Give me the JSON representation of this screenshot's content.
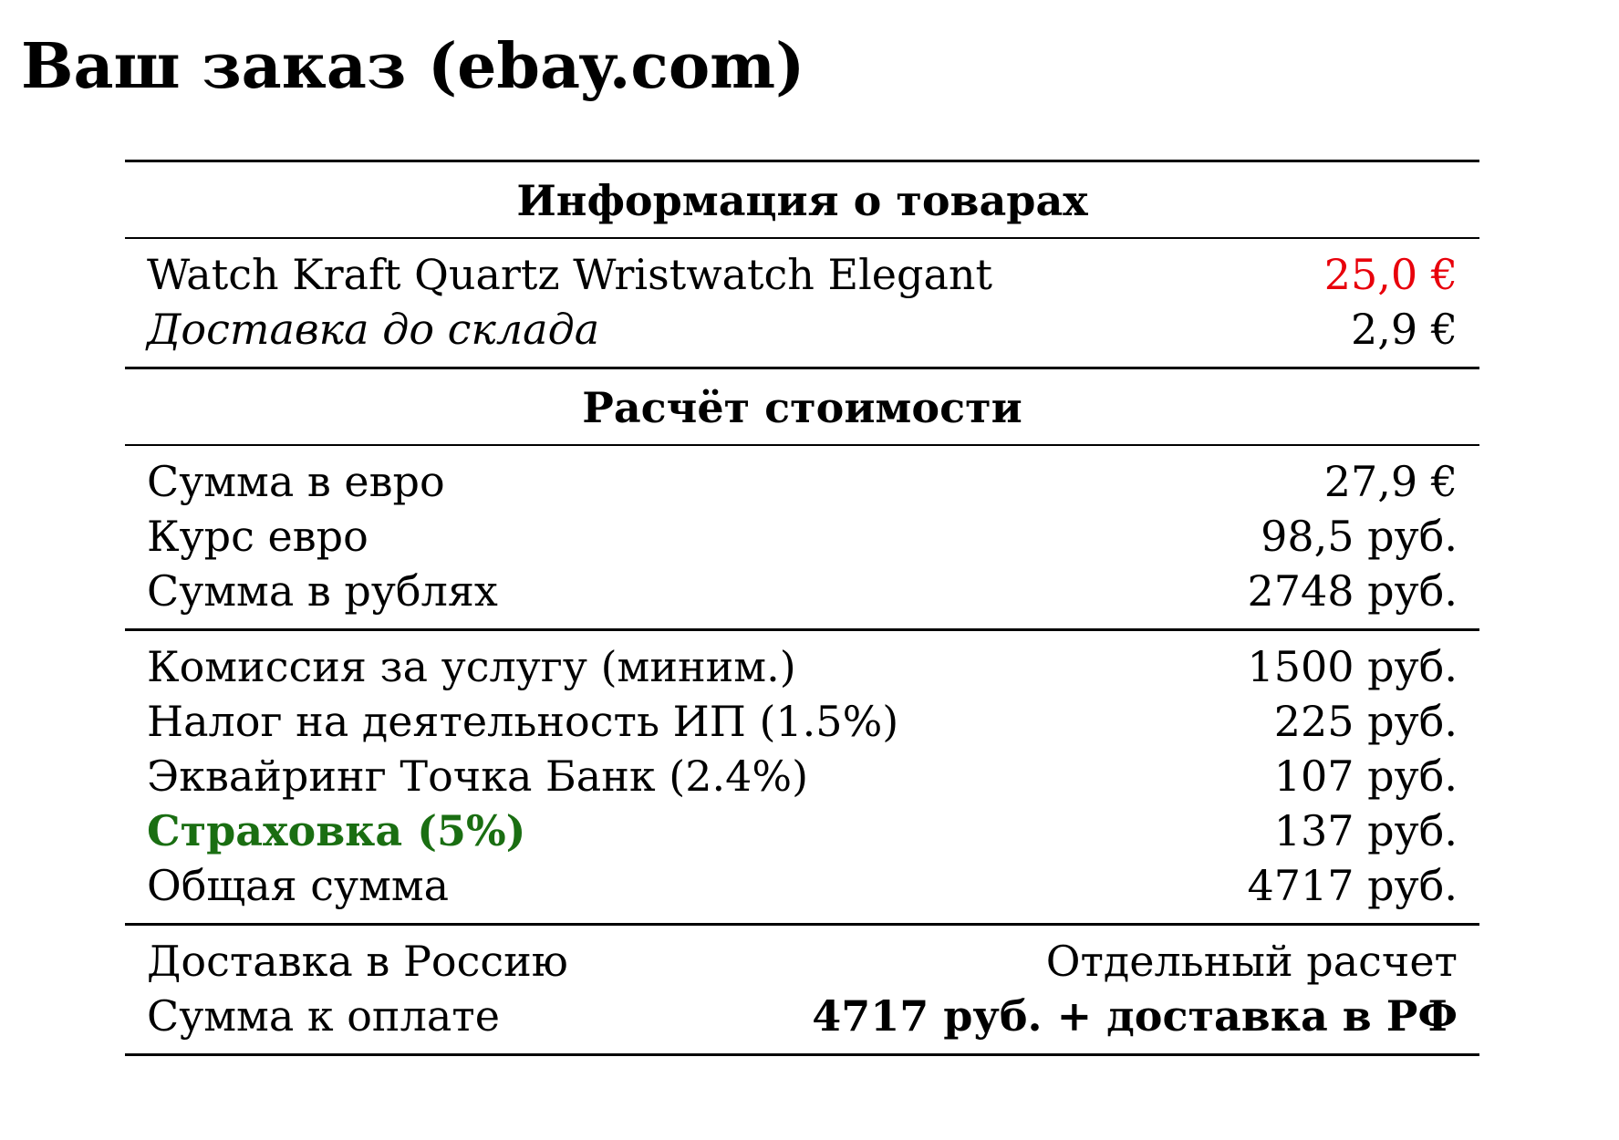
{
  "title": "Ваш заказ (ebay.com)",
  "colors": {
    "price_highlight": "#e8000b",
    "insurance_label": "#1a6e12",
    "text": "#000000"
  },
  "goods_section": {
    "header": "Информация о товарах",
    "rows": [
      {
        "label": "Watch Kraft Quartz Wristwatch Elegant",
        "value": "25,0 €"
      },
      {
        "label": "Доставка до склада",
        "value": "2,9 €"
      }
    ]
  },
  "cost_section": {
    "header": "Расчёт стоимости",
    "conversion_rows": [
      {
        "label": "Сумма в евро",
        "value": "27,9 €"
      },
      {
        "label": "Курс евро",
        "value": "98,5 руб."
      },
      {
        "label": "Сумма в рублях",
        "value": "2748 руб."
      }
    ],
    "fee_rows": [
      {
        "label": "Комиссия за услугу (миним.)",
        "value": "1500 руб."
      },
      {
        "label": "Налог на деятельность ИП (1.5%)",
        "value": "225 руб."
      },
      {
        "label": "Эквайринг Точка Банк (2.4%)",
        "value": "107 руб."
      },
      {
        "label": "Страховка (5%)",
        "value": "137 руб."
      },
      {
        "label": "Общая сумма",
        "value": "4717 руб."
      }
    ],
    "final_rows": [
      {
        "label": "Доставка в Россию",
        "value": "Отдельный расчет"
      },
      {
        "label": "Сумма к оплате",
        "value": "4717 руб. + доставка в РФ"
      }
    ]
  }
}
